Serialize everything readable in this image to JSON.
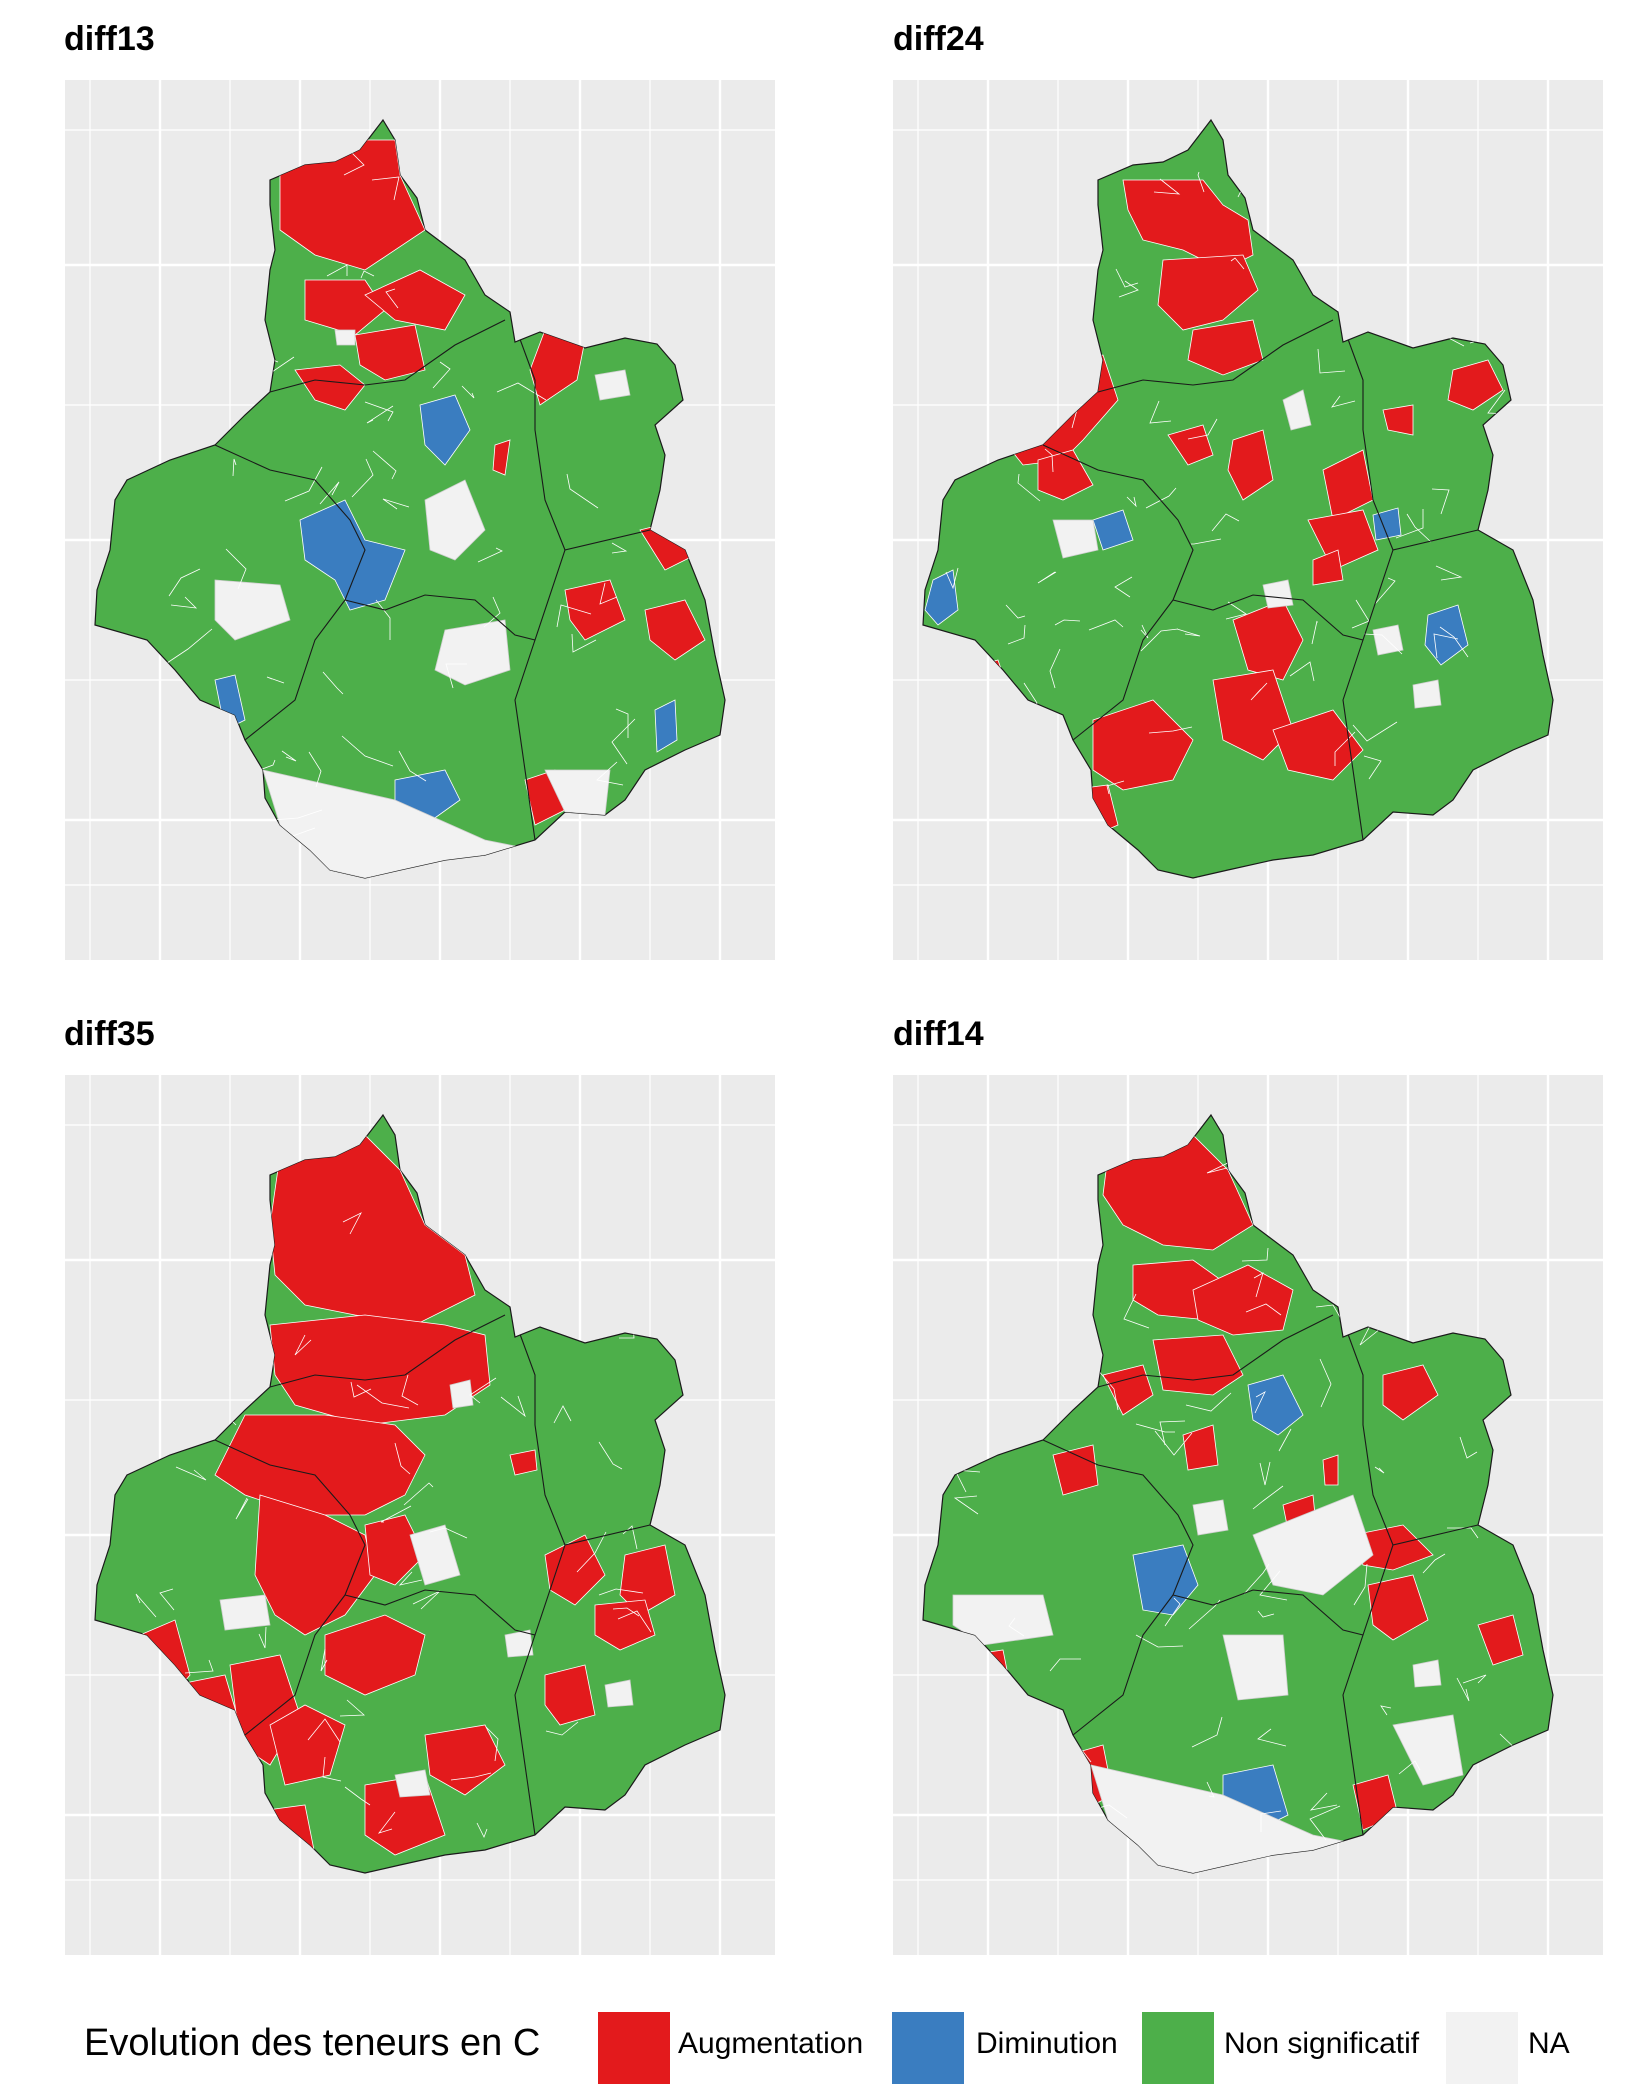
{
  "panels": [
    {
      "id": "p1",
      "title": "diff13"
    },
    {
      "id": "p2",
      "title": "diff24"
    },
    {
      "id": "p3",
      "title": "diff35"
    },
    {
      "id": "p4",
      "title": "diff14"
    }
  ],
  "legend": {
    "title": "Evolution des teneurs en C",
    "items": [
      {
        "label": "Augmentation",
        "color": "#e31a1c"
      },
      {
        "label": "Diminution",
        "color": "#3a7dc0"
      },
      {
        "label": "Non significatif",
        "color": "#4daf4a"
      },
      {
        "label": "NA",
        "color": "#f2f2f2"
      }
    ]
  },
  "region_colors": {
    "red": "#e31a1c",
    "blue": "#3a7dc0",
    "green": "#4daf4a",
    "na": "#f2f2f2"
  }
}
